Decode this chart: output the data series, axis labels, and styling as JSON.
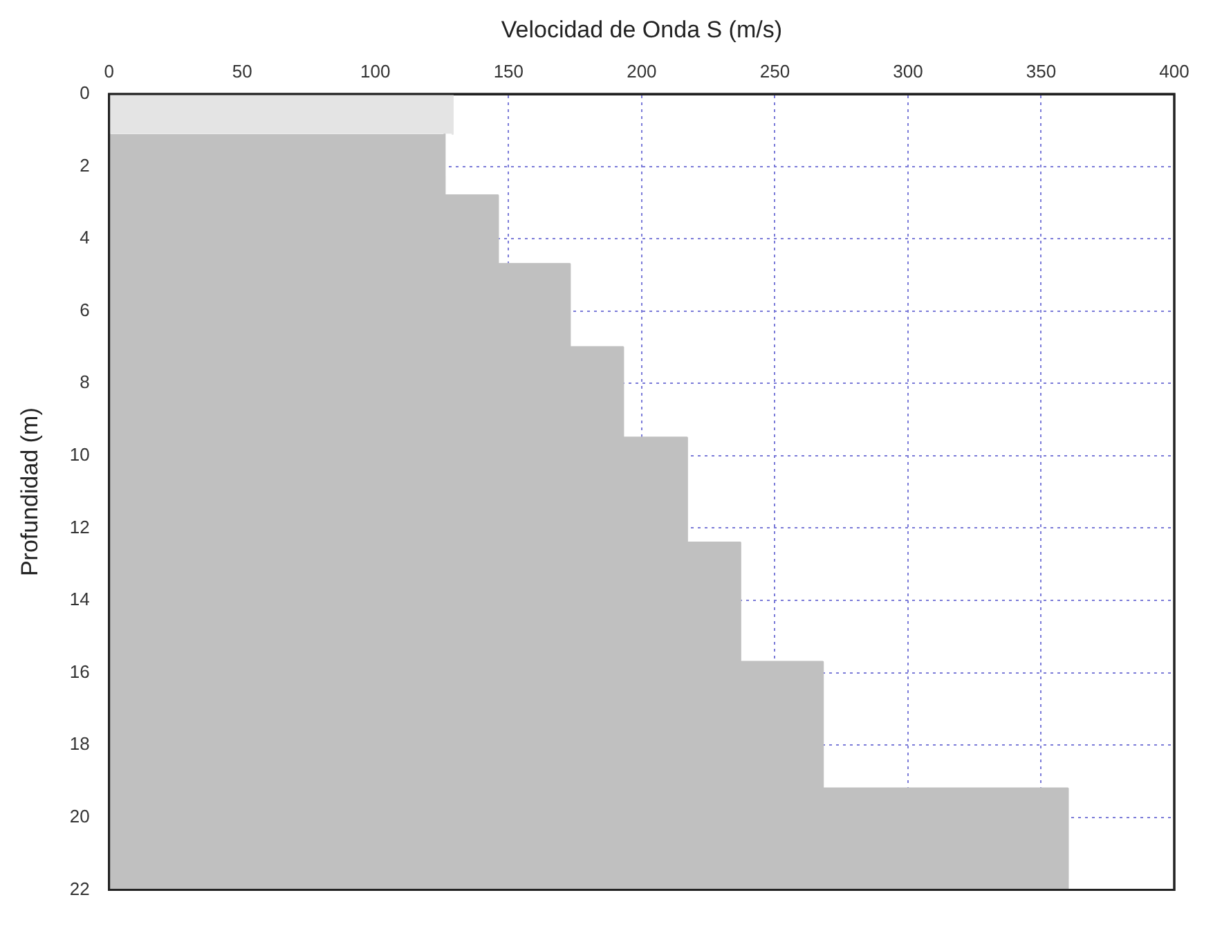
{
  "chart_data": {
    "type": "area",
    "orientation": "horizontal",
    "xlabel": "Velocidad de Onda S (m/s)",
    "ylabel": "Profundidad (m)",
    "xlim": [
      0,
      400
    ],
    "xticks": [
      0,
      50,
      100,
      150,
      200,
      250,
      300,
      350,
      400
    ],
    "ylim": [
      22,
      0
    ],
    "yticks": [
      0,
      2,
      4,
      6,
      8,
      10,
      12,
      14,
      16,
      18,
      20,
      22
    ],
    "grid": true,
    "legend": false,
    "marker": "none",
    "line_style": "solid",
    "series": [
      {
        "color": "#e4e4e4",
        "x": [
          0,
          1.1
        ],
        "values": [
          129,
          129
        ]
      },
      {
        "color": "#c0c0c0",
        "x": [
          1.1,
          2.8,
          2.8,
          4.7,
          4.7,
          7.0,
          7.0,
          9.5,
          9.5,
          12.4,
          12.4,
          15.7,
          15.7,
          19.2,
          19.2,
          22
        ],
        "values": [
          126,
          126,
          146,
          146,
          173,
          173,
          193,
          193,
          217,
          217,
          237,
          237,
          268,
          268,
          360,
          360
        ]
      }
    ]
  }
}
